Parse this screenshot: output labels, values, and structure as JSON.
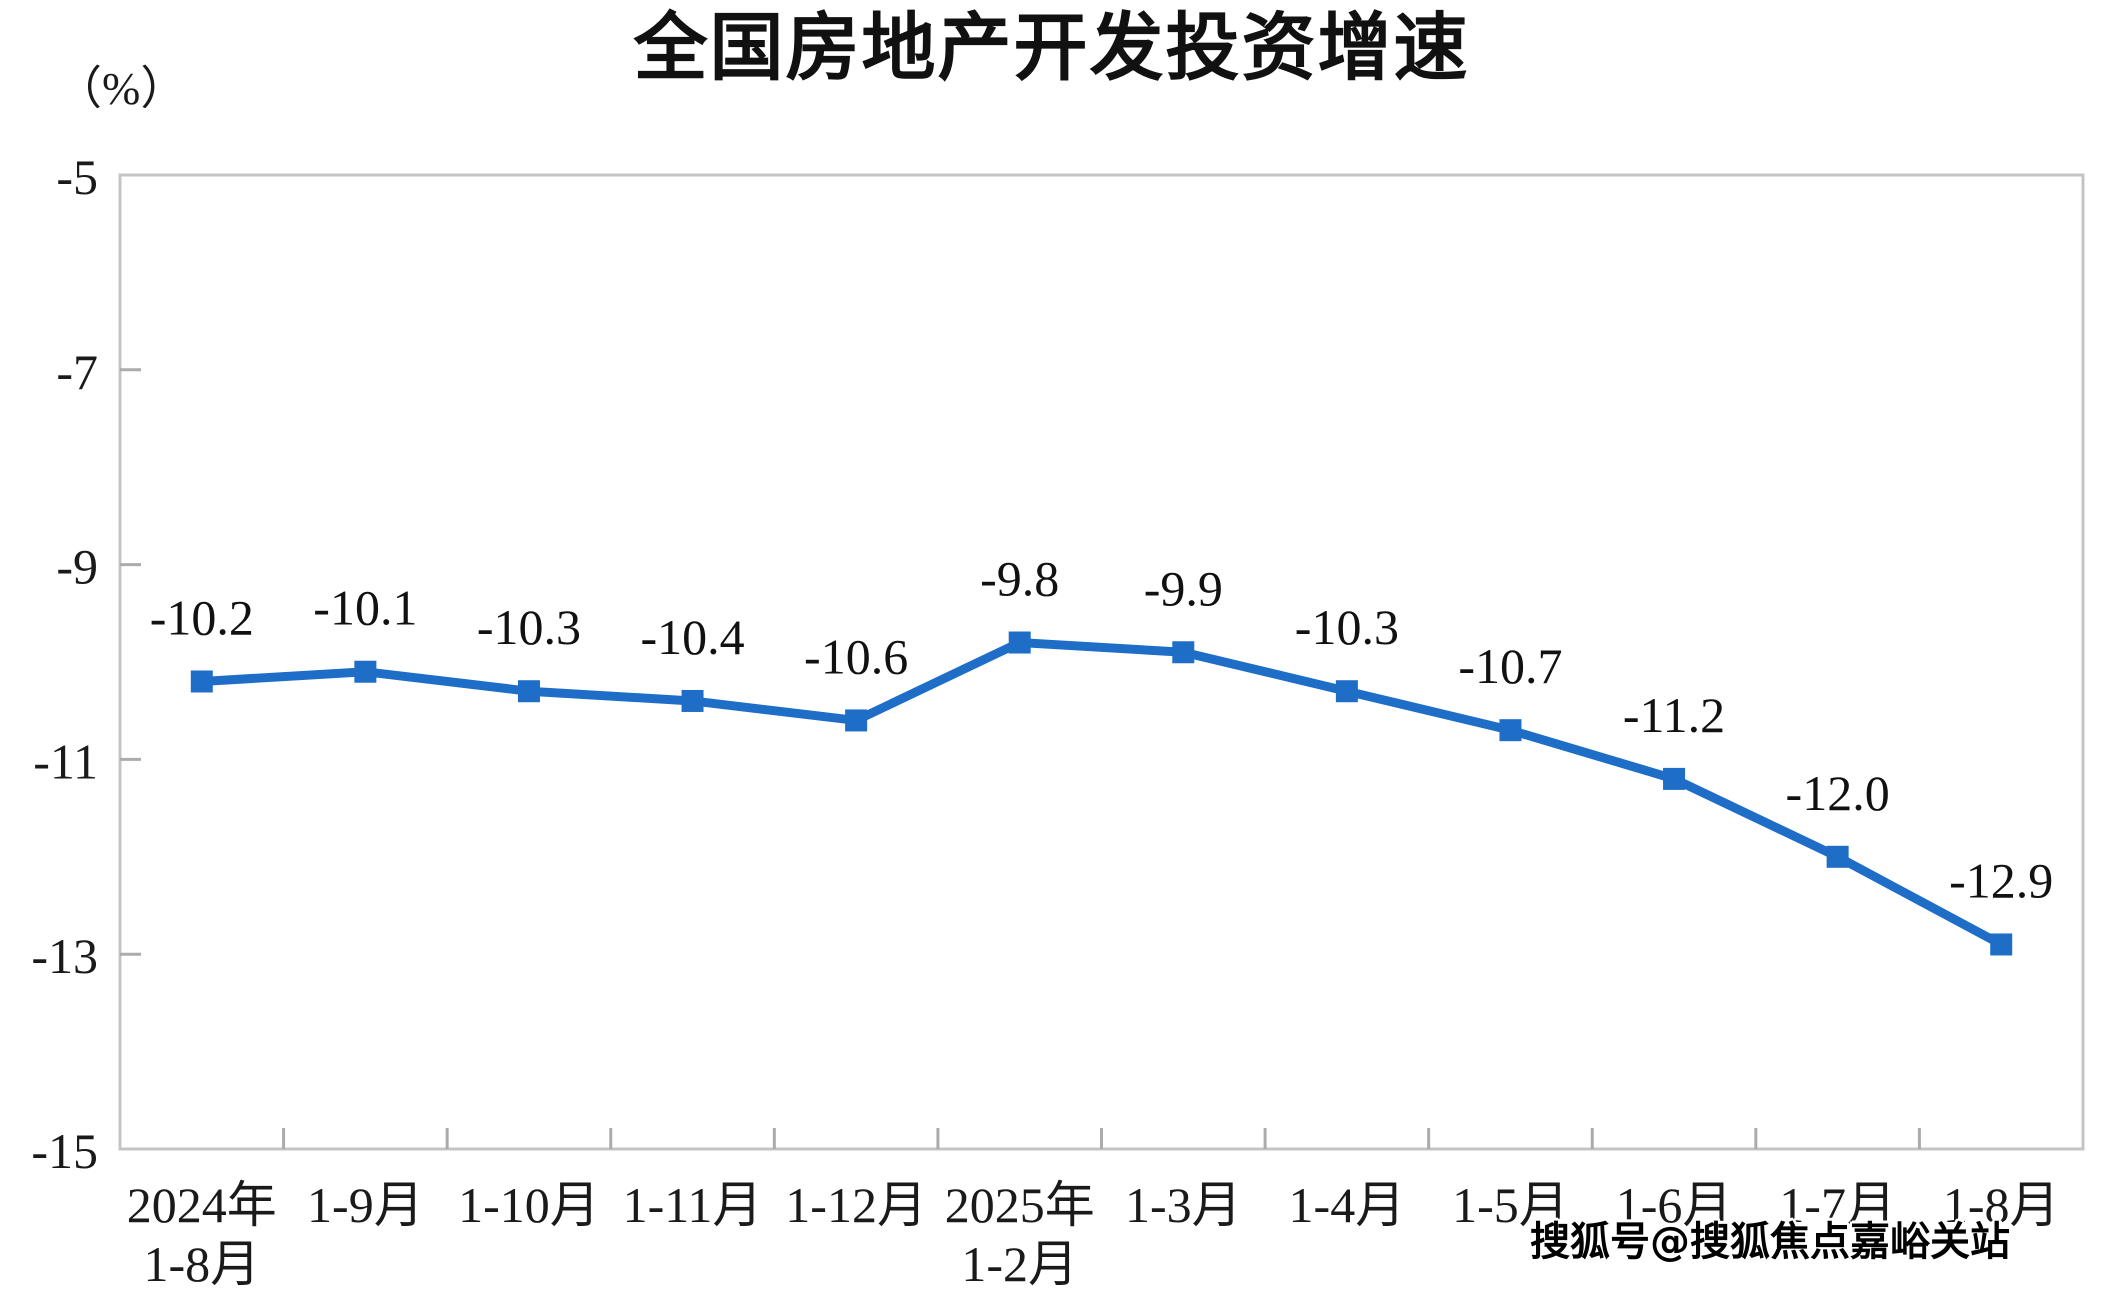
{
  "page": {
    "watermark": "搜狐号@搜狐焦点嘉峪关站"
  },
  "chart_data": {
    "type": "line",
    "title": "全国房地产开发投资增速",
    "unit_label": "（%）",
    "categories": [
      [
        "2024年",
        "1-8月"
      ],
      [
        "1-9月"
      ],
      [
        "1-10月"
      ],
      [
        "1-11月"
      ],
      [
        "1-12月"
      ],
      [
        "2025年",
        "1-2月"
      ],
      [
        "1-3月"
      ],
      [
        "1-4月"
      ],
      [
        "1-5月"
      ],
      [
        "1-6月"
      ],
      [
        "1-7月"
      ],
      [
        "1-8月"
      ]
    ],
    "values": [
      -10.2,
      -10.1,
      -10.3,
      -10.4,
      -10.6,
      -9.8,
      -9.9,
      -10.3,
      -10.7,
      -11.2,
      -12.0,
      -12.9
    ],
    "data_labels": [
      "-10.2",
      "-10.1",
      "-10.3",
      "-10.4",
      "-10.6",
      "-9.8",
      "-9.9",
      "-10.3",
      "-10.7",
      "-11.2",
      "-12.0",
      "-12.9"
    ],
    "ylim": [
      -15,
      -5
    ],
    "y_ticks": [
      -5,
      -7,
      -9,
      -11,
      -13,
      -15
    ],
    "grid": "off",
    "legend": "none",
    "colors": {
      "line": "#1e6ec8",
      "marker": "#1e6ec8",
      "plot_border": "#c4c4c4",
      "tick": "#ababab",
      "text": "#1a1a1a",
      "label_text": "#111111"
    }
  }
}
